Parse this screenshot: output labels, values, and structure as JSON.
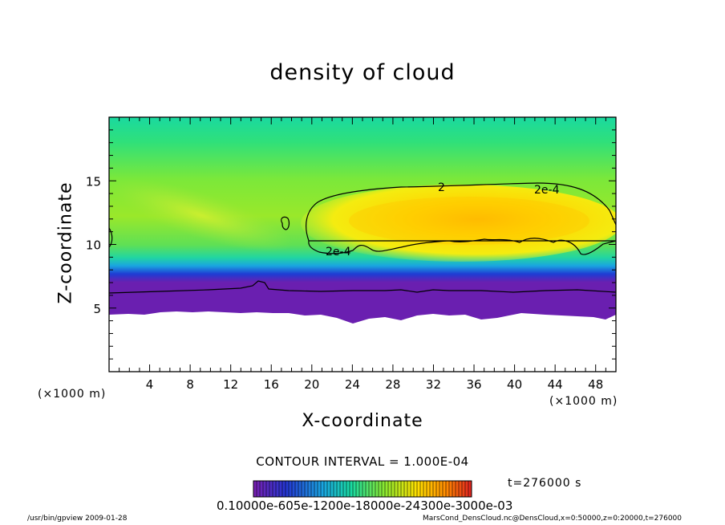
{
  "chart_data": {
    "type": "heatmap",
    "title": "density of cloud",
    "xlabel": "X-coordinate",
    "ylabel": "Z-coordinate",
    "x_unit": "(×1000 m)",
    "y_unit": "(×1000 m)",
    "xlim": [
      0,
      50
    ],
    "ylim": [
      0,
      20
    ],
    "x_ticks": [
      4,
      8,
      12,
      16,
      20,
      24,
      28,
      32,
      36,
      40,
      44,
      48
    ],
    "y_ticks": [
      5,
      10,
      15
    ],
    "colormap": "rainbow",
    "contour_interval": "CONTOUR INTERVAL = 1.000E-04",
    "contour_labels": [
      "2e-4",
      "2e-4",
      "2"
    ],
    "colorbar_labels": "0.10000e-605e-1200e-18000e-24300e-3000e-03",
    "time_label": "t=276000 s",
    "cloud_base_km_by_x": {
      "x": [
        0,
        4,
        8,
        12,
        16,
        20,
        24,
        28,
        32,
        36,
        40,
        44,
        48,
        50
      ],
      "z": [
        4.3,
        4.4,
        4.4,
        4.4,
        4.4,
        4.3,
        3.9,
        4.1,
        4.3,
        4.0,
        4.2,
        4.2,
        4.0,
        4.3
      ]
    },
    "colors": {
      "low_density": "#7a1fb0",
      "mid_low": "#1a3ad0",
      "mid": "#19e0a0",
      "high": "#ffe000",
      "max": "#ffb300"
    }
  },
  "footer": {
    "left": "/usr/bin/gpview   2009-01-28",
    "right": "MarsCond_DensCloud.nc@DensCloud,x=0:50000,z=0:20000,t=276000"
  }
}
